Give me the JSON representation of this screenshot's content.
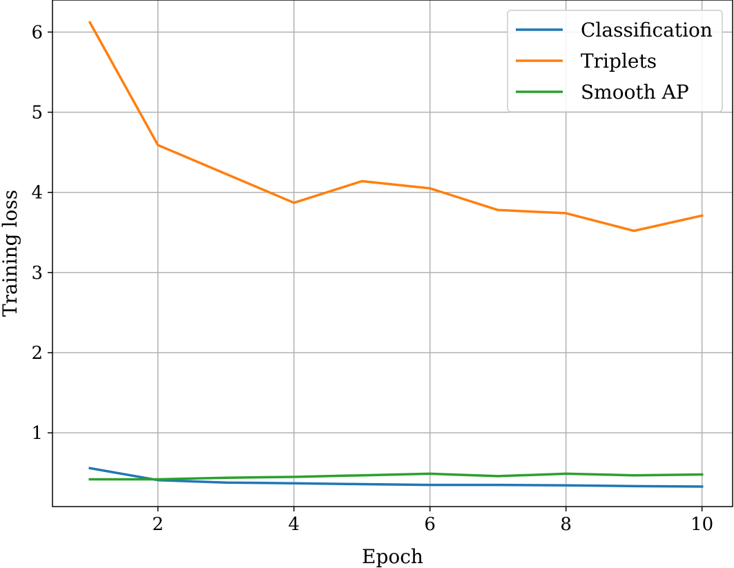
{
  "chart_data": {
    "type": "line",
    "title": "",
    "xlabel": "Epoch",
    "ylabel": "Training loss",
    "xlim": [
      0.45,
      10.45
    ],
    "ylim": [
      0.08,
      6.4
    ],
    "xticks": [
      2,
      4,
      6,
      8,
      10
    ],
    "xtick_labels": [
      "2",
      "4",
      "6",
      "8",
      "10"
    ],
    "yticks": [
      1,
      2,
      3,
      4,
      5,
      6
    ],
    "ytick_labels": [
      "1",
      "2",
      "3",
      "4",
      "5",
      "6"
    ],
    "grid": true,
    "legend_position": "top-right",
    "x": [
      1,
      2,
      3,
      4,
      5,
      6,
      7,
      8,
      9,
      10
    ],
    "series": [
      {
        "name": "Classification",
        "color": "#1f77b4",
        "values": [
          0.56,
          0.41,
          0.38,
          0.37,
          0.36,
          0.35,
          0.35,
          0.345,
          0.335,
          0.33
        ]
      },
      {
        "name": "Triplets",
        "color": "#ff7f0e",
        "values": [
          6.12,
          4.59,
          4.23,
          3.87,
          4.14,
          4.05,
          3.78,
          3.74,
          3.52,
          3.71
        ]
      },
      {
        "name": "Smooth AP",
        "color": "#2ca02c",
        "values": [
          0.42,
          0.42,
          0.44,
          0.45,
          0.47,
          0.49,
          0.46,
          0.49,
          0.47,
          0.48
        ]
      }
    ]
  }
}
